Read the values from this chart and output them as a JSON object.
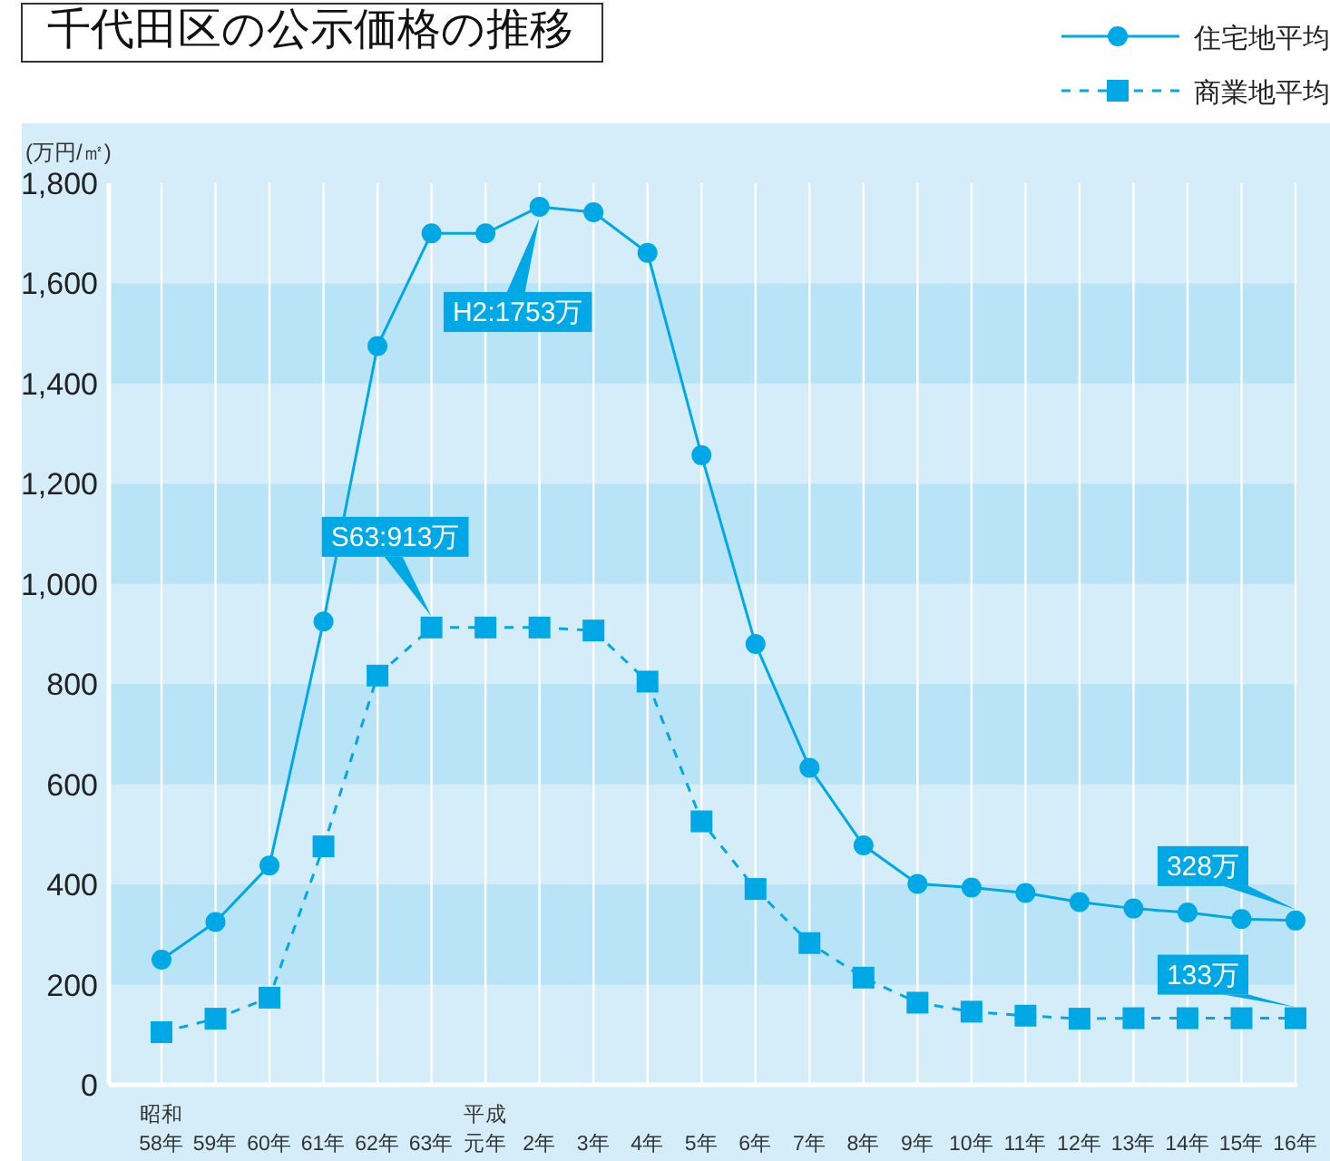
{
  "chart_data": {
    "type": "line",
    "title": "千代田区の公示価格の推移",
    "ylabel": "(万円/㎡)",
    "categories": [
      "昭和58年",
      "59年",
      "60年",
      "61年",
      "62年",
      "63年",
      "平成元年",
      "2年",
      "3年",
      "4年",
      "5年",
      "6年",
      "7年",
      "8年",
      "9年",
      "10年",
      "11年",
      "12年",
      "13年",
      "14年",
      "15年",
      "16年"
    ],
    "series": [
      {
        "name": "住宅地平均",
        "color": "#00a8e6",
        "marker": "circle",
        "line_style": "solid",
        "values": [
          250,
          325,
          438,
          925,
          1475,
          1700,
          1700,
          1753,
          1742,
          1661,
          1257,
          880,
          633,
          478,
          401,
          394,
          383,
          365,
          352,
          344,
          331,
          328
        ]
      },
      {
        "name": "商業地平均",
        "color": "#00a8e6",
        "marker": "square",
        "line_style": "dashed",
        "values": [
          105,
          132,
          174,
          476,
          817,
          913,
          913,
          913,
          907,
          805,
          526,
          391,
          283,
          214,
          164,
          146,
          138,
          132,
          133,
          133,
          133,
          133
        ]
      }
    ],
    "ylim": [
      0,
      1800
    ],
    "yticks": [
      0,
      {
        "value": 200,
        "label": "200"
      },
      {
        "value": 400,
        "label": "400"
      },
      {
        "value": 600,
        "label": "600"
      },
      {
        "value": 800,
        "label": "800"
      },
      {
        "value": 1000,
        "label": "1,000"
      },
      {
        "value": 1200,
        "label": "1,200"
      },
      {
        "value": 1400,
        "label": "1,400"
      },
      {
        "value": 1600,
        "label": "1,600"
      },
      {
        "value": 1800,
        "label": "1,800"
      }
    ],
    "grid": "x",
    "legend": "top right",
    "bands": [
      {
        "axis": "y",
        "from": 200,
        "to": 400,
        "color": "#b9e4f8"
      },
      {
        "axis": "y",
        "from": 600,
        "to": 800,
        "color": "#b9e4f8"
      },
      {
        "axis": "y",
        "from": 1000,
        "to": 1200,
        "color": "#b9e4f8"
      },
      {
        "axis": "y",
        "from": 1400,
        "to": 1600,
        "color": "#b9e4f8"
      }
    ],
    "annotations": [
      {
        "text": "H2:1753万",
        "x": "2年",
        "y": 1753
      },
      {
        "text": "S63:913万",
        "x": "63年",
        "y": 913
      },
      {
        "text": "328万",
        "x": "16年",
        "y": 328
      },
      {
        "text": "133万",
        "x": "16年",
        "y": 133
      }
    ]
  }
}
